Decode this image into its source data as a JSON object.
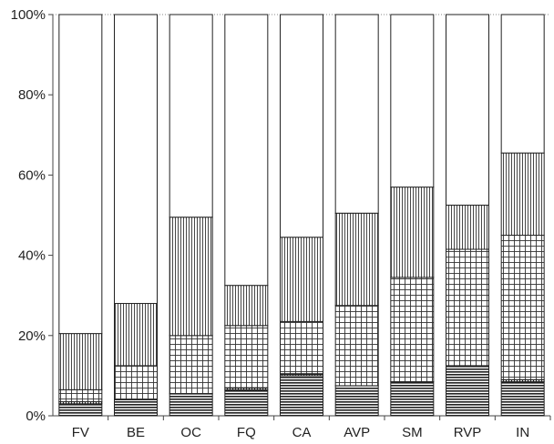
{
  "chart_data": {
    "type": "bar",
    "stacked": true,
    "categories": [
      "FV",
      "BE",
      "OC",
      "FQ",
      "CA",
      "AVP",
      "SM",
      "RVP",
      "IN"
    ],
    "ylim": [
      0,
      100
    ],
    "y_ticks": [
      0,
      20,
      40,
      60,
      80,
      100
    ],
    "y_tick_labels": [
      "0%",
      "20%",
      "40%",
      "60%",
      "80%",
      "100%"
    ],
    "grid": false,
    "legend": "none",
    "series": [
      {
        "pattern": "horizontal-lines",
        "values": [
          3,
          4,
          5.5,
          6.5,
          10,
          7.5,
          8.5,
          12.5,
          8.5
        ]
      },
      {
        "pattern": "dense-grid",
        "values": [
          0.5,
          0,
          0,
          0.5,
          0.5,
          0,
          0,
          0,
          0.5
        ]
      },
      {
        "pattern": "grid",
        "values": [
          3,
          8.5,
          14.5,
          15.5,
          13,
          20,
          26,
          29,
          36
        ]
      },
      {
        "pattern": "vertical-lines",
        "values": [
          14,
          15.5,
          29.5,
          10,
          21,
          23,
          22.5,
          11,
          20.5
        ]
      },
      {
        "pattern": "blank",
        "values": [
          79.5,
          72,
          50.5,
          67.5,
          55.5,
          49.5,
          43,
          47.5,
          34.5
        ]
      }
    ]
  }
}
